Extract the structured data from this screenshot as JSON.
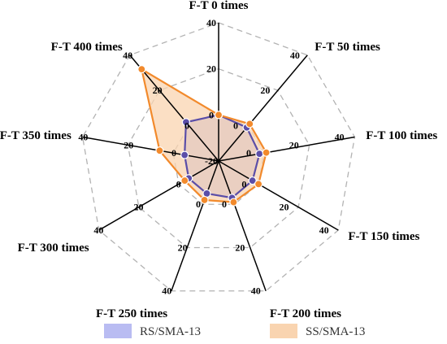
{
  "chart_data": {
    "type": "radar",
    "axes": [
      "F-T 0 times",
      "F-T 50 times",
      "F-T 100 times",
      "F-T 150 times",
      "F-T 200 times",
      "F-T 250 times",
      "F-T 300 times",
      "F-T 350 times",
      "F-T 400 times"
    ],
    "rlim": [
      -20,
      40
    ],
    "ticks": [
      -20,
      0,
      20,
      40
    ],
    "grid": true,
    "legend_position": "bottom",
    "series": [
      {
        "name": "RS/SMA-13",
        "values": [
          0,
          -1,
          -2,
          -3,
          -3,
          -5,
          -5,
          -5,
          2
        ],
        "color": "#5b4ea8",
        "fill": "#b9bcf2"
      },
      {
        "name": "SS/SMA-13",
        "values": [
          0,
          1,
          1,
          0,
          -1,
          -2,
          -3,
          6,
          32
        ],
        "color": "#f28a2c",
        "fill": "#f9d4b0"
      }
    ]
  }
}
